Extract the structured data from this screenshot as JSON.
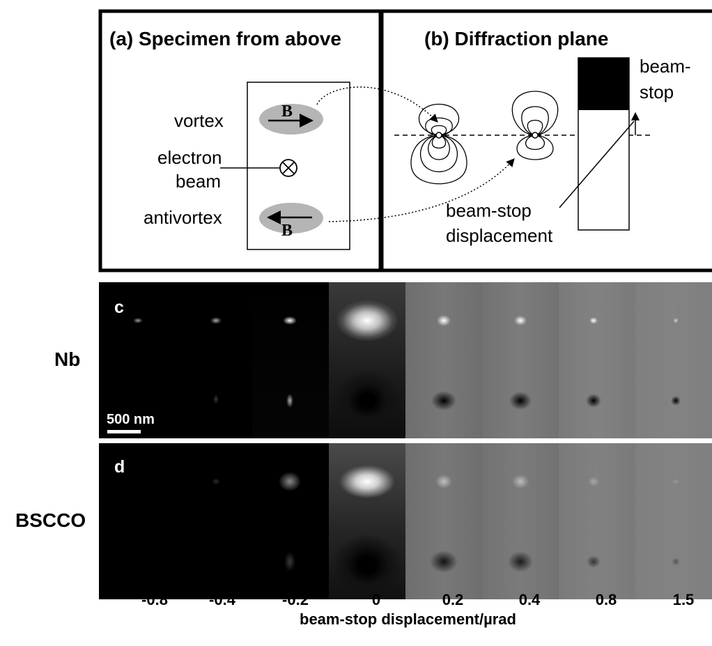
{
  "panel_a": {
    "title": "(a) Specimen from above",
    "vortex_label": "vortex",
    "electron_beam_label_line1": "electron",
    "electron_beam_label_line2": "beam",
    "antivortex_label": "antivortex",
    "field_symbol": "B"
  },
  "panel_b": {
    "title": "(b) Diffraction plane",
    "beamstop_label_line1": "beam-",
    "beamstop_label_line2": "stop",
    "displacement_label_line1": "beam-stop",
    "displacement_label_line2": "displacement"
  },
  "image_rows": [
    {
      "panel": "c",
      "material": "Nb",
      "scale_bar": "500 nm"
    },
    {
      "panel": "d",
      "material": "BSCCO"
    }
  ],
  "x_axis": {
    "label": "beam-stop displacement/µrad",
    "ticks": [
      "-0.8",
      "-0.4",
      "-0.2",
      "0",
      "0.2",
      "0.4",
      "0.8",
      "1.5"
    ]
  }
}
